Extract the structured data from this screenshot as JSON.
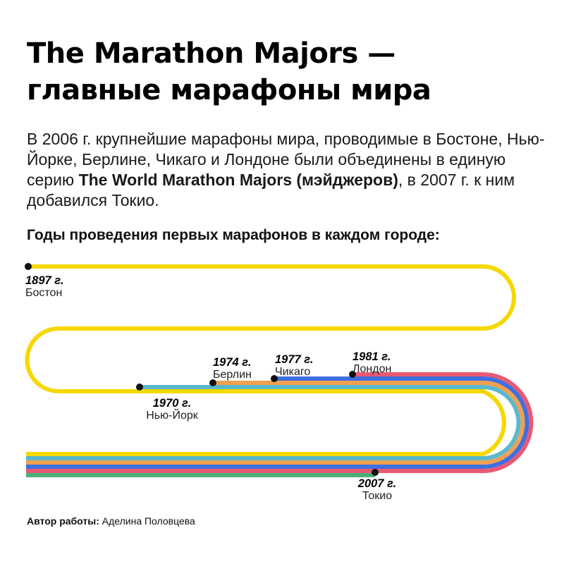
{
  "title": {
    "line1": "The Marathon Majors —",
    "line2": "главные марафоны мира"
  },
  "intro": {
    "part1": "В 2006 г. крупнейшие марафоны мира, проводимые в Бостоне, Нью-Йорке, Берлине, Чикаго и Лондоне были объединены в единую серию ",
    "bold": "The World Marathon Majors (мэйджеров)",
    "part2": ", в 2007 г. к ним добавился Токио."
  },
  "subtitle": "Годы проведения первых марафонов в каждом городе:",
  "marathons": [
    {
      "year": "1897 г.",
      "city": "Бостон",
      "color": "#f5d800"
    },
    {
      "year": "1970 г.",
      "city": "Нью-Йорк",
      "color": "#5bb8cc"
    },
    {
      "year": "1974 г.",
      "city": "Берлин",
      "color": "#f0a050"
    },
    {
      "year": "1977 г.",
      "city": "Чикаго",
      "color": "#3f6fe0"
    },
    {
      "year": "1981 г.",
      "city": "Лондон",
      "color": "#e85a74"
    },
    {
      "year": "2007 г.",
      "city": "Токио",
      "color": "#4caf78"
    }
  ],
  "author": {
    "label": "Автор работы:",
    "name": " Аделина Половцева"
  },
  "colors": {
    "background": "#ffffff",
    "text": "#111111",
    "dot": "#111111"
  }
}
